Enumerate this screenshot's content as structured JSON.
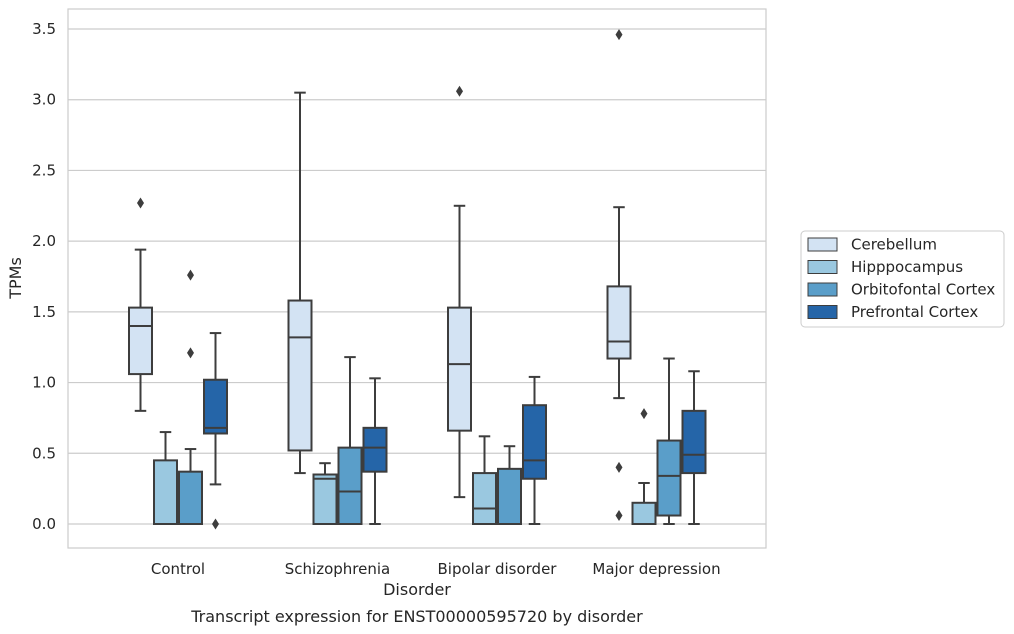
{
  "chart_data": {
    "type": "box",
    "title": "",
    "caption": "Transcript expression for ENST00000595720 by disorder",
    "xlabel": "Disorder",
    "ylabel": "TPMs",
    "ylim": [
      -0.17,
      3.64
    ],
    "yticks": [
      "0.0",
      "0.5",
      "1.0",
      "1.5",
      "2.0",
      "2.5",
      "3.0",
      "3.5"
    ],
    "grid": "horizontal",
    "legend_position": "right",
    "categories": [
      "Control",
      "Schizophrenia",
      "Bipolar disorder",
      "Major depression"
    ],
    "series": [
      {
        "name": "Cerebellum",
        "color": "#d3e3f3",
        "boxes": [
          {
            "whisker_low": 0.8,
            "q1": 1.06,
            "median": 1.4,
            "q3": 1.53,
            "whisker_high": 1.94,
            "outliers": [
              2.27
            ]
          },
          {
            "whisker_low": 0.36,
            "q1": 0.52,
            "median": 1.32,
            "q3": 1.58,
            "whisker_high": 3.05,
            "outliers": []
          },
          {
            "whisker_low": 0.19,
            "q1": 0.66,
            "median": 1.13,
            "q3": 1.53,
            "whisker_high": 2.25,
            "outliers": [
              3.06
            ]
          },
          {
            "whisker_low": 0.89,
            "q1": 1.17,
            "median": 1.29,
            "q3": 1.68,
            "whisker_high": 2.24,
            "outliers": [
              3.46,
              0.4,
              0.06
            ]
          }
        ]
      },
      {
        "name": "Hipppocampus",
        "color": "#9ac8e0",
        "boxes": [
          {
            "whisker_low": 0.0,
            "q1": 0.0,
            "median": 0.0,
            "q3": 0.45,
            "whisker_high": 0.65,
            "outliers": []
          },
          {
            "whisker_low": 0.0,
            "q1": 0.0,
            "median": 0.32,
            "q3": 0.35,
            "whisker_high": 0.43,
            "outliers": []
          },
          {
            "whisker_low": 0.0,
            "q1": 0.0,
            "median": 0.11,
            "q3": 0.36,
            "whisker_high": 0.62,
            "outliers": []
          },
          {
            "whisker_low": 0.0,
            "q1": 0.0,
            "median": 0.0,
            "q3": 0.15,
            "whisker_high": 0.29,
            "outliers": [
              0.78
            ]
          }
        ]
      },
      {
        "name": "Orbitofontal Cortex",
        "color": "#5a9ec9",
        "boxes": [
          {
            "whisker_low": 0.0,
            "q1": 0.0,
            "median": 0.0,
            "q3": 0.37,
            "whisker_high": 0.53,
            "outliers": [
              1.76,
              1.21
            ]
          },
          {
            "whisker_low": 0.0,
            "q1": 0.0,
            "median": 0.23,
            "q3": 0.54,
            "whisker_high": 1.18,
            "outliers": []
          },
          {
            "whisker_low": 0.0,
            "q1": 0.0,
            "median": 0.0,
            "q3": 0.39,
            "whisker_high": 0.55,
            "outliers": []
          },
          {
            "whisker_low": 0.0,
            "q1": 0.06,
            "median": 0.34,
            "q3": 0.59,
            "whisker_high": 1.17,
            "outliers": []
          }
        ]
      },
      {
        "name": "Prefrontal Cortex",
        "color": "#2565a8",
        "boxes": [
          {
            "whisker_low": 0.28,
            "q1": 0.64,
            "median": 0.68,
            "q3": 1.02,
            "whisker_high": 1.35,
            "outliers": [
              0.0
            ]
          },
          {
            "whisker_low": 0.0,
            "q1": 0.37,
            "median": 0.54,
            "q3": 0.68,
            "whisker_high": 1.03,
            "outliers": []
          },
          {
            "whisker_low": 0.0,
            "q1": 0.32,
            "median": 0.45,
            "q3": 0.84,
            "whisker_high": 1.04,
            "outliers": []
          },
          {
            "whisker_low": 0.0,
            "q1": 0.36,
            "median": 0.49,
            "q3": 0.8,
            "whisker_high": 1.08,
            "outliers": []
          }
        ]
      }
    ]
  }
}
